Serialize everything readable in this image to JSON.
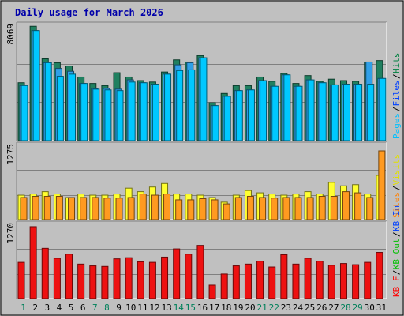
{
  "chart_data": [
    {
      "type": "bar",
      "title": "Daily usage for March 2026",
      "categories": [
        "1",
        "2",
        "3",
        "4",
        "5",
        "6",
        "7",
        "8",
        "9",
        "10",
        "11",
        "12",
        "13",
        "14",
        "15",
        "16",
        "17",
        "18",
        "19",
        "20",
        "21",
        "22",
        "23",
        "24",
        "25",
        "26",
        "27",
        "28",
        "29",
        "30",
        "31"
      ],
      "weekend_days": [
        "1",
        "7",
        "8",
        "14",
        "15",
        "21",
        "22",
        "28",
        "29"
      ],
      "max_label": "8069",
      "ylim": [
        0,
        8069
      ],
      "legend": [
        {
          "label": "Hits",
          "color": "#008040"
        },
        {
          "label": "Files",
          "color": "#0040ff"
        },
        {
          "label": "Pages",
          "color": "#00c0ff"
        }
      ],
      "series": [
        {
          "name": "Hits",
          "color": "#208060",
          "values": [
            4050,
            8000,
            5720,
            5450,
            5220,
            4450,
            4000,
            3850,
            4750,
            4450,
            4200,
            4100,
            4800,
            5650,
            5500,
            5950,
            2650,
            3300,
            3850,
            3850,
            4450,
            4150,
            4700,
            4000,
            4550,
            4150,
            4300,
            4200,
            4150,
            5500,
            5600
          ]
        },
        {
          "name": "Files",
          "color": "#30a0e8",
          "values": [
            3850,
            7700,
            5450,
            5050,
            4850,
            4000,
            3650,
            3650,
            3600,
            4250,
            4050,
            3950,
            4650,
            5300,
            5450,
            5800,
            2450,
            3100,
            3500,
            3550,
            4200,
            3800,
            4600,
            3800,
            4250,
            4050,
            3900,
            3950,
            3950,
            5500,
            4350
          ]
        },
        {
          "name": "Pages",
          "color": "#00c8ff",
          "values": [
            3850,
            7700,
            5450,
            4500,
            4650,
            4000,
            3600,
            3550,
            3500,
            4100,
            4050,
            3950,
            4650,
            4900,
            4950,
            5800,
            2450,
            3100,
            3500,
            3550,
            4200,
            3800,
            4600,
            3800,
            4250,
            4050,
            3900,
            3950,
            3950,
            3950,
            4350
          ]
        }
      ]
    },
    {
      "type": "bar",
      "max_label": "1275",
      "ylim": [
        0,
        1275
      ],
      "legend": [
        {
          "label": "Visits",
          "color": "#e0e000"
        },
        {
          "label": "Sites",
          "color": "#ff8000"
        }
      ],
      "series": [
        {
          "name": "Visits",
          "color": "#ffff30",
          "values": [
            420,
            440,
            480,
            440,
            380,
            440,
            420,
            420,
            440,
            540,
            480,
            560,
            620,
            440,
            440,
            420,
            380,
            300,
            420,
            500,
            460,
            440,
            420,
            440,
            480,
            440,
            640,
            580,
            600,
            440,
            760
          ]
        },
        {
          "name": "Sites",
          "color": "#ff9a20",
          "values": [
            380,
            400,
            400,
            400,
            380,
            380,
            380,
            370,
            370,
            380,
            440,
            420,
            440,
            340,
            340,
            360,
            340,
            270,
            380,
            400,
            380,
            370,
            380,
            380,
            380,
            400,
            400,
            480,
            460,
            380,
            1180
          ]
        }
      ]
    },
    {
      "type": "bar",
      "max_label": "1270",
      "ylim": [
        0,
        1270
      ],
      "legend": [
        {
          "label": "KB In",
          "color": "#0040ff"
        },
        {
          "label": "KB Out",
          "color": "#00c000"
        },
        {
          "label": "KB F",
          "color": "#ff0000"
        }
      ],
      "series": [
        {
          "name": "KB F",
          "color": "#ee1111",
          "values": [
            620,
            1230,
            860,
            690,
            760,
            590,
            560,
            550,
            680,
            700,
            630,
            620,
            710,
            850,
            760,
            910,
            230,
            420,
            560,
            590,
            640,
            540,
            750,
            590,
            690,
            640,
            570,
            600,
            580,
            620,
            790
          ]
        }
      ]
    }
  ]
}
